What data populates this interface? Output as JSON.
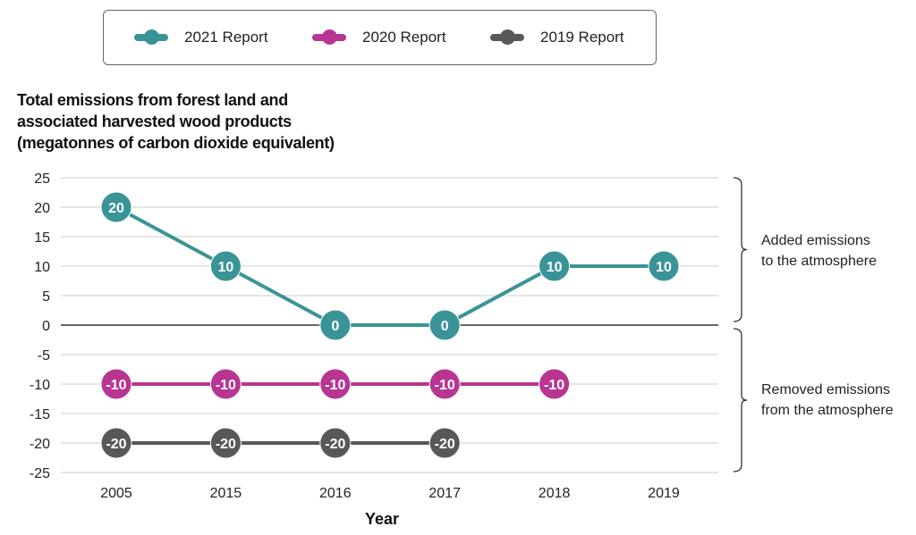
{
  "colors": {
    "2021 Report": "#3a9497",
    "2020 Report": "#b83592",
    "2019 Report": "#58585a"
  },
  "annotations": {
    "added": [
      "Added emissions",
      "to the atmosphere"
    ],
    "removed": [
      "Removed emissions",
      "from the atmosphere"
    ]
  },
  "chart_data": {
    "type": "line",
    "title": [
      "Total emissions from forest land and",
      "associated harvested wood products",
      "(megatonnes of carbon dioxide equivalent)"
    ],
    "xlabel": "Year",
    "ylabel": "",
    "categories": [
      "2005",
      "2015",
      "2016",
      "2017",
      "2018",
      "2019"
    ],
    "ylim": [
      -25,
      25
    ],
    "yticks": [
      25,
      20,
      15,
      10,
      5,
      0,
      -5,
      -10,
      -15,
      -20,
      -25
    ],
    "grid": true,
    "legend": "top",
    "series": [
      {
        "name": "2021 Report",
        "values": [
          20,
          10,
          0,
          0,
          10,
          10
        ]
      },
      {
        "name": "2020 Report",
        "values": [
          -10,
          -10,
          -10,
          -10,
          -10,
          null
        ]
      },
      {
        "name": "2019 Report",
        "values": [
          -20,
          -20,
          -20,
          -20,
          null,
          null
        ]
      }
    ]
  }
}
